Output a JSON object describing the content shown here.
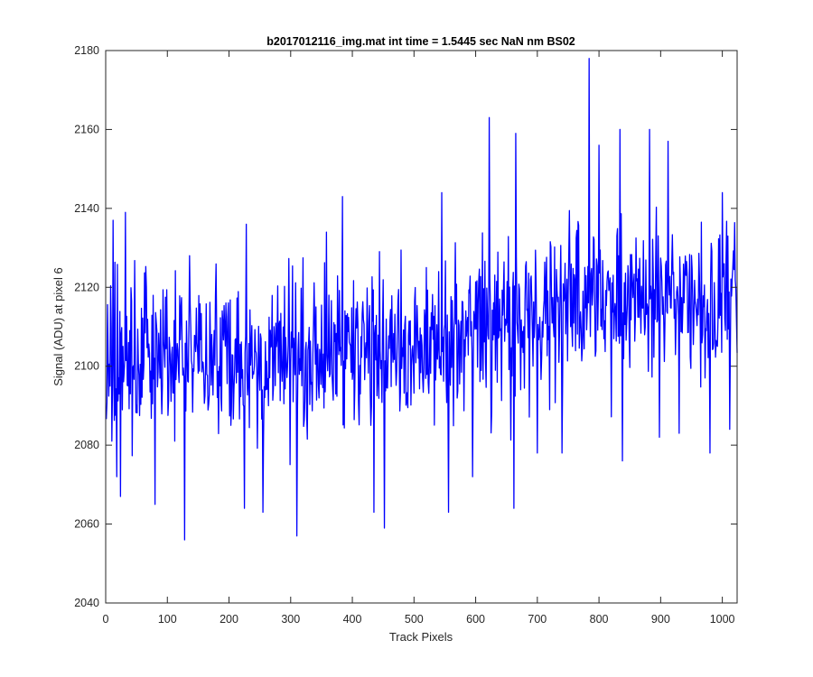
{
  "chart_data": {
    "type": "line",
    "title": "b2017012116_img.mat int time = 1.5445 sec  NaN nm BS02",
    "xlabel": "Track Pixels",
    "ylabel": "Signal (ADU) at pixel 6",
    "xlim": [
      0,
      1024
    ],
    "ylim": [
      2040,
      2180
    ],
    "xticks": [
      0,
      100,
      200,
      300,
      400,
      500,
      600,
      700,
      800,
      900,
      1000
    ],
    "yticks": [
      2040,
      2060,
      2080,
      2100,
      2120,
      2140,
      2160,
      2180
    ],
    "grid": false,
    "legend": "none",
    "series": [
      {
        "color": "#0000ff",
        "x_start": 1,
        "x_step": 1,
        "n_points": 1024,
        "trend": {
          "x": [
            0,
            100,
            200,
            300,
            400,
            500,
            600,
            700,
            800,
            900,
            1024
          ],
          "y": [
            2102,
            2101,
            2101,
            2102,
            2103,
            2104,
            2110,
            2113,
            2117,
            2117,
            2116
          ]
        },
        "noise_std": 10,
        "notable_points": [
          {
            "x": 10,
            "y": 2081
          },
          {
            "x": 12,
            "y": 2137
          },
          {
            "x": 18,
            "y": 2072
          },
          {
            "x": 24,
            "y": 2067
          },
          {
            "x": 32,
            "y": 2139
          },
          {
            "x": 80,
            "y": 2065
          },
          {
            "x": 128,
            "y": 2056
          },
          {
            "x": 136,
            "y": 2128
          },
          {
            "x": 225,
            "y": 2064
          },
          {
            "x": 228,
            "y": 2136
          },
          {
            "x": 255,
            "y": 2063
          },
          {
            "x": 310,
            "y": 2057
          },
          {
            "x": 358,
            "y": 2134
          },
          {
            "x": 384,
            "y": 2143
          },
          {
            "x": 435,
            "y": 2063
          },
          {
            "x": 452,
            "y": 2059
          },
          {
            "x": 545,
            "y": 2144
          },
          {
            "x": 556,
            "y": 2063
          },
          {
            "x": 595,
            "y": 2072
          },
          {
            "x": 622,
            "y": 2163
          },
          {
            "x": 662,
            "y": 2064
          },
          {
            "x": 665,
            "y": 2159
          },
          {
            "x": 700,
            "y": 2078
          },
          {
            "x": 740,
            "y": 2078
          },
          {
            "x": 784,
            "y": 2178
          },
          {
            "x": 800,
            "y": 2156
          },
          {
            "x": 834,
            "y": 2160
          },
          {
            "x": 838,
            "y": 2076
          },
          {
            "x": 882,
            "y": 2160
          },
          {
            "x": 898,
            "y": 2082
          },
          {
            "x": 912,
            "y": 2157
          },
          {
            "x": 930,
            "y": 2083
          },
          {
            "x": 980,
            "y": 2078
          },
          {
            "x": 1000,
            "y": 2144
          },
          {
            "x": 1012,
            "y": 2084
          }
        ]
      }
    ]
  }
}
